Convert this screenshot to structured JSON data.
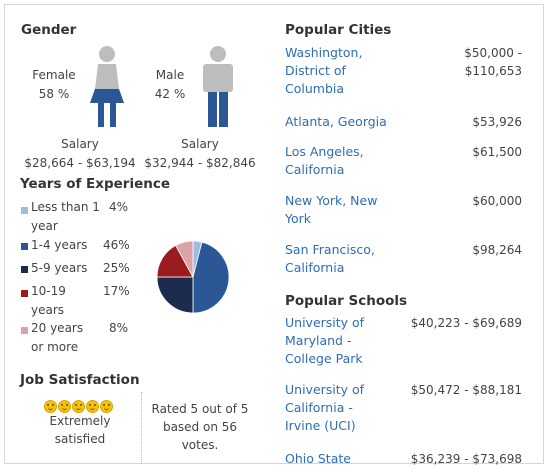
{
  "gender": {
    "title": "Gender",
    "female": {
      "label": "Female",
      "pct": "58 %",
      "salary_label": "Salary",
      "salary": "$28,664 - $63,194"
    },
    "male": {
      "label": "Male",
      "pct": "42 %",
      "salary_label": "Salary",
      "salary": "$32,944 - $82,846"
    }
  },
  "experience": {
    "title": "Years of Experience",
    "items": [
      {
        "label": "Less than 1 year",
        "pct": "4%"
      },
      {
        "label": "1-4 years",
        "pct": "46%"
      },
      {
        "label": "5-9 years",
        "pct": "25%"
      },
      {
        "label": "10-19 years",
        "pct": "17%"
      },
      {
        "label": "20 years or more",
        "pct": "8%"
      }
    ]
  },
  "chart_data": {
    "type": "pie",
    "categories": [
      "Less than 1 year",
      "1-4 years",
      "5-9 years",
      "10-19 years",
      "20 years or more"
    ],
    "values": [
      4,
      46,
      25,
      17,
      8
    ],
    "colors": [
      "#9bbde0",
      "#2b5797",
      "#1c2c4f",
      "#9b1c1f",
      "#d9a3a8"
    ]
  },
  "satisfaction": {
    "title": "Job Satisfaction",
    "label_line1": "Extremely",
    "label_line2": "satisfied",
    "rated_line1": "Rated 5 out of 5",
    "rated_line2": "based on 56",
    "rated_line3": "votes.",
    "stars": 5
  },
  "cities": {
    "title": "Popular Cities",
    "items": [
      {
        "line1": "Washington,",
        "line2": "District of",
        "line3": "Columbia",
        "value1": "$50,000 -",
        "value2": "$110,653"
      },
      {
        "line1": "Atlanta, Georgia",
        "value1": "$53,926"
      },
      {
        "line1": "Los Angeles,",
        "line2": "California",
        "value1": "$61,500"
      },
      {
        "line1": "New York, New",
        "line2": "York",
        "value1": "$60,000"
      },
      {
        "line1": "San Francisco,",
        "line2": "California",
        "value1": "$98,264"
      }
    ]
  },
  "schools": {
    "title": "Popular Schools",
    "items": [
      {
        "line1": "University of",
        "line2": "Maryland -",
        "line3": "College Park",
        "value1": "$40,223 - $69,689"
      },
      {
        "line1": "University of",
        "line2": "California -",
        "line3": "Irvine (UCI)",
        "value1": "$50,472 - $88,181"
      },
      {
        "line1": "Ohio State",
        "value1": "$36,239 - $73,698"
      }
    ]
  },
  "colors": {
    "link": "#2e6db4",
    "female_figure": "#2b5797",
    "male_figure": "#2b5797",
    "head": "#bdbdbd"
  }
}
